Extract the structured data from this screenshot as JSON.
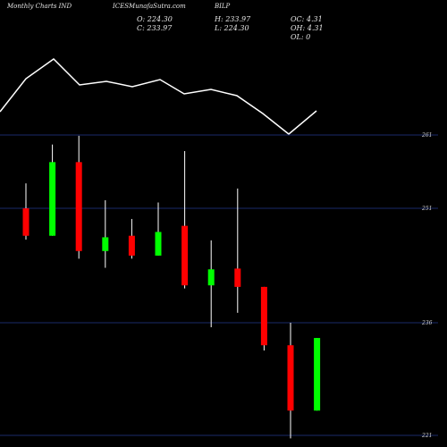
{
  "header": {
    "left": "Monthly Charts IND",
    "source": "ICESMunafaSutra.com",
    "symbol": "BILP"
  },
  "ohlc": {
    "open": "O: 224.30",
    "close": "C: 233.97",
    "high": "H: 233.97",
    "low": "L: 224.30",
    "oc": "OC: 4.31",
    "oh": "OH: 4.31",
    "ol": "OL: 0"
  },
  "colors": {
    "background": "#000000",
    "up": "#00ff00",
    "down": "#ff0000",
    "grid": "#1a2a6a",
    "line": "#ffffff"
  },
  "chart_data": {
    "type": "candlestick",
    "ytick_labels": [
      "261",
      "251",
      "236",
      "221"
    ],
    "ytick_values": [
      261,
      251,
      236,
      221
    ],
    "candles": [
      {
        "open": 251,
        "high": 254.4,
        "low": 246.9,
        "close": 247.4
      },
      {
        "open": 247.4,
        "high": 259.7,
        "low": 247.4,
        "close": 257.3
      },
      {
        "open": 257.3,
        "high": 260.9,
        "low": 244.4,
        "close": 245.4
      },
      {
        "open": 245.4,
        "high": 252.1,
        "low": 243.2,
        "close": 247.2
      },
      {
        "open": 247.4,
        "high": 249.6,
        "low": 244.4,
        "close": 244.8
      },
      {
        "open": 244.8,
        "high": 251.8,
        "low": 244.8,
        "close": 247.9
      },
      {
        "open": 248.7,
        "high": 258.8,
        "low": 240.5,
        "close": 240.9
      },
      {
        "open": 240.9,
        "high": 246.8,
        "low": 235.4,
        "close": 243.0
      },
      {
        "open": 243.1,
        "high": 253.7,
        "low": 237.3,
        "close": 240.7
      },
      {
        "open": 240.7,
        "high": 240.7,
        "low": 232.3,
        "close": 233.0
      },
      {
        "open": 233.0,
        "high": 236.0,
        "low": 220.6,
        "close": 224.3
      },
      {
        "open": 224.3,
        "high": 233.97,
        "low": 224.3,
        "close": 233.97
      }
    ]
  }
}
